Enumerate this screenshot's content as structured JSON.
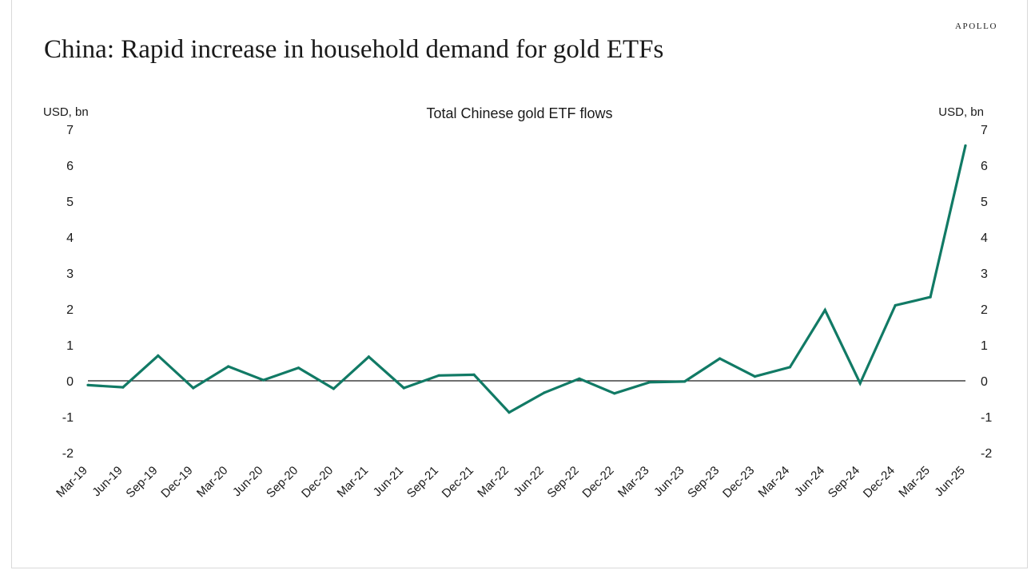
{
  "brand": "APOLLO",
  "title": "China: Rapid increase in household demand for gold ETFs",
  "colors": {
    "line": "#117a65",
    "zero_line": "#1a1a1a",
    "text": "#1a1a1a"
  },
  "chart_data": {
    "type": "line",
    "title": "Total Chinese gold ETF flows",
    "ylabel_left": "USD, bn",
    "ylabel_right": "USD, bn",
    "xlabel": "",
    "ylim": [
      -2,
      7
    ],
    "yticks": [
      7,
      6,
      5,
      4,
      3,
      2,
      1,
      0,
      -1,
      -2
    ],
    "grid": false,
    "categories": [
      "Mar-19",
      "Jun-19",
      "Sep-19",
      "Dec-19",
      "Mar-20",
      "Jun-20",
      "Sep-20",
      "Dec-20",
      "Mar-21",
      "Jun-21",
      "Sep-21",
      "Dec-21",
      "Mar-22",
      "Jun-22",
      "Sep-22",
      "Dec-22",
      "Mar-23",
      "Jun-23",
      "Sep-23",
      "Dec-23",
      "Mar-24",
      "Jun-24",
      "Sep-24",
      "Dec-24",
      "Mar-25",
      "Jun-25"
    ],
    "series": [
      {
        "name": "Total Chinese gold ETF flows",
        "values": [
          -0.12,
          -0.18,
          0.7,
          -0.2,
          0.4,
          0.02,
          0.36,
          -0.22,
          0.67,
          -0.2,
          0.15,
          0.17,
          -0.88,
          -0.33,
          0.06,
          -0.35,
          -0.04,
          -0.02,
          0.62,
          0.12,
          0.38,
          1.97,
          -0.07,
          2.1,
          2.33,
          6.55
        ]
      }
    ]
  }
}
